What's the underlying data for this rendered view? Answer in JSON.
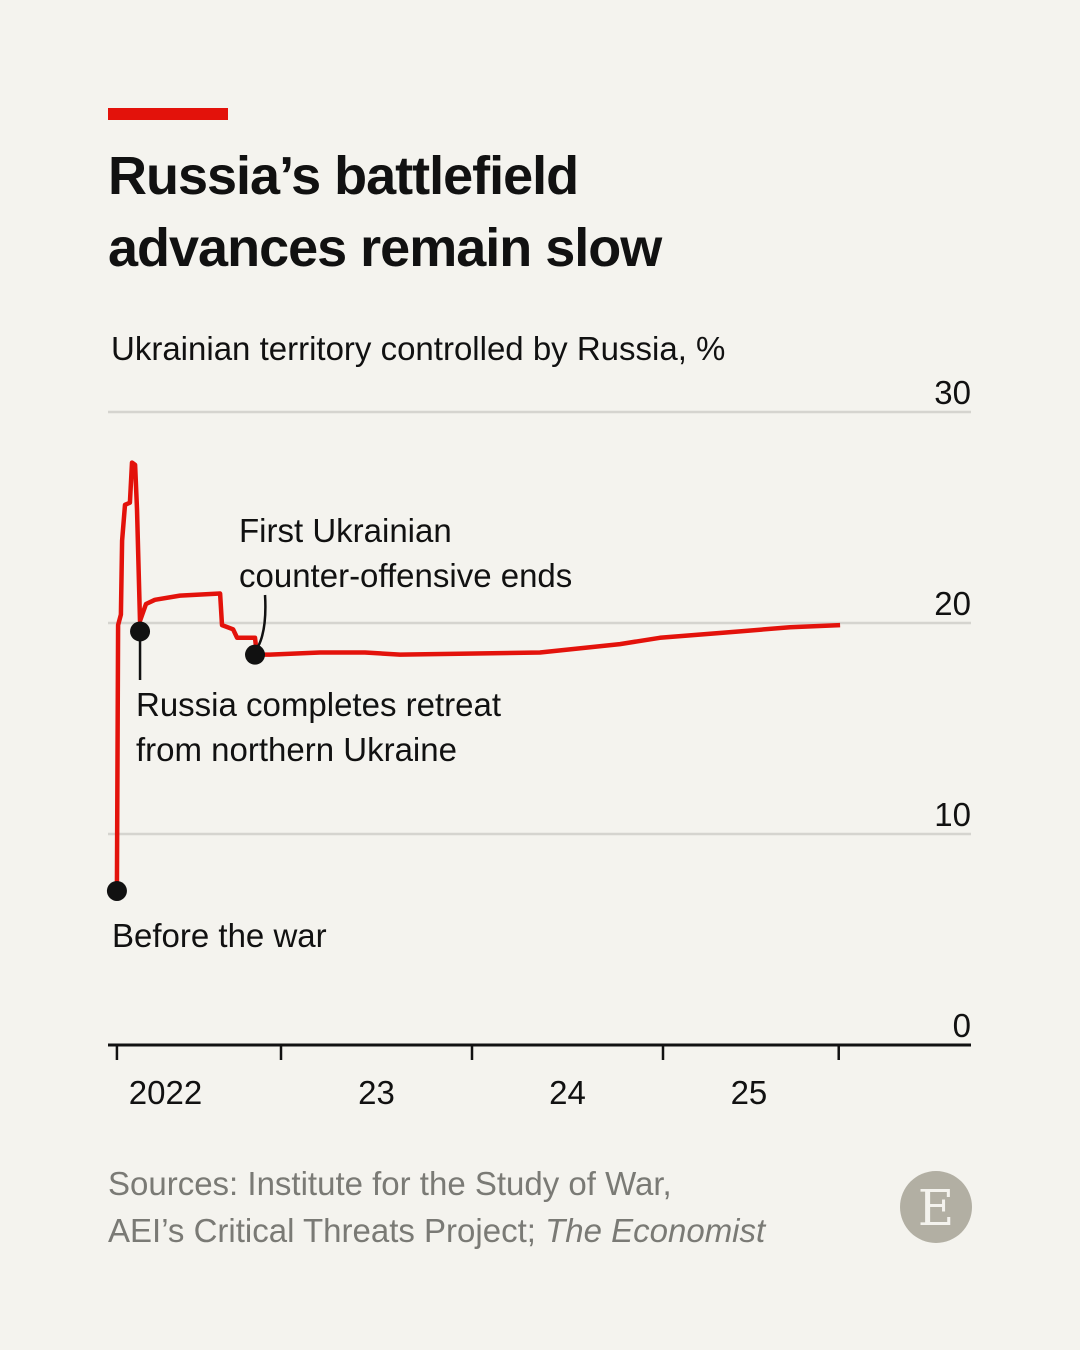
{
  "chart_data": {
    "type": "line",
    "title": "Russia’s battlefield advances remain slow",
    "ylabel": "Ukrainian territory controlled by Russia, %",
    "ylim": [
      0,
      30
    ],
    "yticks": [
      {
        "v": 0,
        "label": "0"
      },
      {
        "v": 10,
        "label": "10"
      },
      {
        "v": 20,
        "label": "20"
      },
      {
        "v": 30,
        "label": "30"
      }
    ],
    "xlim": [
      2022.1,
      2026.6
    ],
    "xticks": [
      2022.141,
      2023,
      2024,
      2025,
      2025.92
    ],
    "xlabels": [
      {
        "v": 2022.5,
        "label": "2022"
      },
      {
        "v": 2023.5,
        "label": "23"
      },
      {
        "v": 2024.5,
        "label": "24"
      },
      {
        "v": 2025.45,
        "label": "25"
      }
    ],
    "grid": true,
    "series": [
      {
        "name": "Ukrainian territory controlled by Russia",
        "color": "#e3120b",
        "x": [
          2022.141,
          2022.147,
          2022.162,
          2022.168,
          2022.183,
          2022.209,
          2022.22,
          2022.236,
          2022.246,
          2022.262,
          2022.293,
          2022.34,
          2022.471,
          2022.681,
          2022.691,
          2022.749,
          2022.77,
          2022.864,
          2022.874,
          2022.942,
          2023.204,
          2023.44,
          2023.623,
          2024.356,
          2024.775,
          2024.984,
          2025.403,
          2025.665,
          2025.927
        ],
        "y": [
          7.3,
          19.9,
          20.4,
          23.9,
          25.6,
          25.7,
          27.6,
          27.5,
          25.4,
          20.1,
          20.9,
          21.1,
          21.3,
          21.4,
          19.9,
          19.7,
          19.3,
          19.3,
          18.5,
          18.5,
          18.6,
          18.6,
          18.5,
          18.6,
          19.0,
          19.3,
          19.6,
          19.8,
          19.9
        ]
      }
    ],
    "annotations": [
      {
        "x": 2022.141,
        "y": 7.3,
        "text": "Before the war"
      },
      {
        "x": 2022.262,
        "y": 19.6,
        "text_lines": [
          "Russia completes retreat",
          "from northern Ukraine"
        ]
      },
      {
        "x": 2022.864,
        "y": 18.5,
        "text_lines": [
          "First Ukrainian",
          "counter-offensive ends"
        ]
      }
    ]
  },
  "title_lines": [
    "Russia’s battlefield",
    "advances remain slow"
  ],
  "subtitle": "Ukrainian territory controlled by Russia, %",
  "source_line1": "Sources: Institute for the Study of War,",
  "source_line2": "AEI’s Critical Threats Project; ",
  "source_italic": "The Economist",
  "logo": "E"
}
